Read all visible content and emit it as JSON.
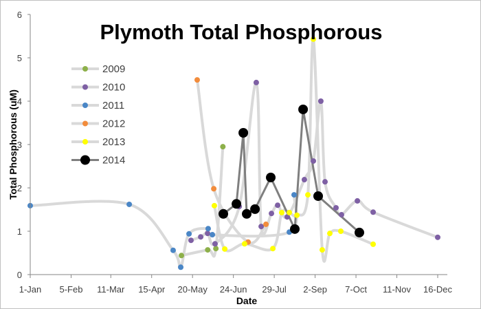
{
  "chart_data": {
    "type": "line",
    "title": "Plymoth Total Phosphorous",
    "xlabel": "Date",
    "ylabel": "Total Phosphorous (uM)",
    "xlim_days": [
      0,
      349
    ],
    "ylim": [
      0,
      6
    ],
    "yticks": [
      0,
      1,
      2,
      3,
      4,
      5,
      6
    ],
    "xticks": [
      {
        "day": 0,
        "label": "1-Jan"
      },
      {
        "day": 35,
        "label": "5-Feb"
      },
      {
        "day": 69,
        "label": "11-Mar"
      },
      {
        "day": 104,
        "label": "15-Apr"
      },
      {
        "day": 139,
        "label": "20-May"
      },
      {
        "day": 174,
        "label": "24-Jun"
      },
      {
        "day": 209,
        "label": "29-Jul"
      },
      {
        "day": 244,
        "label": "2-Sep"
      },
      {
        "day": 279,
        "label": "7-Oct"
      },
      {
        "day": 314,
        "label": "11-Nov"
      },
      {
        "day": 349,
        "label": "16-Dec"
      }
    ],
    "grid": false,
    "legend_position": "top-left",
    "series": [
      {
        "name": "2009",
        "color": "#8db04a",
        "x": [
          129.5,
          152,
          159,
          165
        ],
        "y": [
          0.44,
          0.57,
          0.6,
          2.95
        ]
      },
      {
        "name": "2010",
        "color": "#7e60a4",
        "x": [
          137.7,
          146,
          151.9,
          158.3,
          179,
          193.6,
          197.8,
          206.6,
          211.9,
          220.1,
          234.8,
          242.5,
          248.9,
          252.5,
          261.9,
          266.6,
          280.2,
          293.7,
          349
        ],
        "y": [
          0.79,
          0.87,
          0.95,
          0.71,
          1.57,
          4.43,
          1.11,
          1.41,
          1.6,
          1.33,
          2.19,
          2.62,
          4.0,
          2.14,
          1.54,
          1.38,
          1.7,
          1.44,
          0.86
        ]
      },
      {
        "name": "2011",
        "color": "#4a86c6",
        "x": [
          0,
          84.8,
          122.4,
          128.9,
          136,
          152.4,
          156,
          221.9,
          226
        ],
        "y": [
          1.59,
          1.62,
          0.56,
          0.17,
          0.94,
          1.06,
          0.92,
          0.98,
          1.84
        ]
      },
      {
        "name": "2012",
        "color": "#f28c3c",
        "x": [
          143,
          157.2,
          186.6,
          201.9
        ],
        "y": [
          4.49,
          1.98,
          0.75,
          1.16
        ]
      },
      {
        "name": "2013",
        "color": "#ffff00",
        "x": [
          157.7,
          166.6,
          183.6,
          207.8,
          215.4,
          221.9,
          228.4,
          237.8,
          242.5,
          250.1,
          256.6,
          266,
          293.7
        ],
        "y": [
          1.59,
          0.59,
          0.71,
          0.6,
          1.43,
          1.43,
          1.37,
          1.84,
          5.43,
          0.57,
          0.95,
          1.0,
          0.7
        ]
      },
      {
        "name": "2014",
        "color": "#000000",
        "line_color": "#7f7f7f",
        "x": [
          165.4,
          176.6,
          182.5,
          185.4,
          192.5,
          206,
          226.6,
          233.7,
          246.6,
          281.9
        ],
        "y": [
          1.4,
          1.63,
          3.27,
          1.4,
          1.51,
          2.24,
          1.05,
          3.81,
          1.81,
          0.97
        ]
      }
    ]
  }
}
